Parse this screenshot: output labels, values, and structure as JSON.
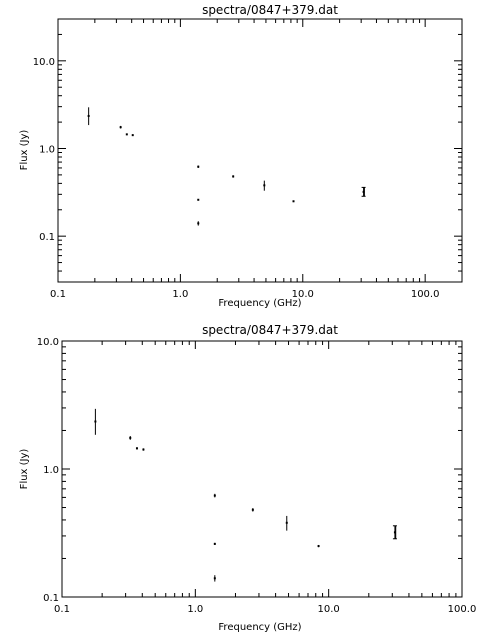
{
  "chart_data": [
    {
      "type": "scatter",
      "title": "spectra/0847+379.dat",
      "xlabel": "Frequency (GHz)",
      "ylabel": "Flux (Jy)",
      "xscale": "log",
      "yscale": "log",
      "xlim": [
        0.1,
        200
      ],
      "ylim": [
        0.03,
        30
      ],
      "xticks": [
        0.1,
        1.0,
        10.0,
        100.0
      ],
      "xtick_labels": [
        "0.1",
        "1.0",
        "10.0",
        "100.0"
      ],
      "yticks": [
        0.1,
        1.0,
        10.0
      ],
      "ytick_labels": [
        "0.1",
        "1.0",
        "10.0"
      ],
      "grid": false,
      "points": [
        {
          "x": 0.178,
          "y": 2.35,
          "ylo": 1.85,
          "yhi": 2.95
        },
        {
          "x": 0.325,
          "y": 1.75,
          "ylo": 1.69,
          "yhi": 1.81
        },
        {
          "x": 0.365,
          "y": 1.45,
          "ylo": 1.42,
          "yhi": 1.48
        },
        {
          "x": 0.408,
          "y": 1.42,
          "ylo": 1.39,
          "yhi": 1.45
        },
        {
          "x": 1.4,
          "y": 0.62,
          "ylo": 0.6,
          "yhi": 0.64
        },
        {
          "x": 1.4,
          "y": 0.26,
          "ylo": 0.255,
          "yhi": 0.265
        },
        {
          "x": 1.4,
          "y": 0.14,
          "ylo": 0.132,
          "yhi": 0.148
        },
        {
          "x": 2.7,
          "y": 0.48,
          "ylo": 0.465,
          "yhi": 0.495
        },
        {
          "x": 4.85,
          "y": 0.38,
          "ylo": 0.33,
          "yhi": 0.43
        },
        {
          "x": 8.4,
          "y": 0.25,
          "ylo": 0.245,
          "yhi": 0.255
        },
        {
          "x": 31.4,
          "y": 0.32,
          "ylo": 0.285,
          "yhi": 0.36
        }
      ]
    },
    {
      "type": "scatter",
      "title": "spectra/0847+379.dat",
      "xlabel": "Frequency (GHz)",
      "ylabel": "Flux (Jy)",
      "xscale": "log",
      "yscale": "log",
      "xlim": [
        0.1,
        100
      ],
      "ylim": [
        0.1,
        10
      ],
      "xticks": [
        0.1,
        1.0,
        10.0,
        100.0
      ],
      "xtick_labels": [
        "0.1",
        "1.0",
        "10.0",
        "100.0"
      ],
      "yticks": [
        0.1,
        1.0,
        10.0
      ],
      "ytick_labels": [
        "0.1",
        "1.0",
        "10.0"
      ],
      "grid": false,
      "points": [
        {
          "x": 0.178,
          "y": 2.35,
          "ylo": 1.85,
          "yhi": 2.95
        },
        {
          "x": 0.325,
          "y": 1.75,
          "ylo": 1.69,
          "yhi": 1.81
        },
        {
          "x": 0.365,
          "y": 1.45,
          "ylo": 1.42,
          "yhi": 1.48
        },
        {
          "x": 0.408,
          "y": 1.42,
          "ylo": 1.39,
          "yhi": 1.45
        },
        {
          "x": 1.4,
          "y": 0.62,
          "ylo": 0.6,
          "yhi": 0.64
        },
        {
          "x": 1.4,
          "y": 0.26,
          "ylo": 0.255,
          "yhi": 0.265
        },
        {
          "x": 1.4,
          "y": 0.14,
          "ylo": 0.132,
          "yhi": 0.148
        },
        {
          "x": 2.7,
          "y": 0.48,
          "ylo": 0.465,
          "yhi": 0.495
        },
        {
          "x": 4.85,
          "y": 0.38,
          "ylo": 0.33,
          "yhi": 0.43
        },
        {
          "x": 8.4,
          "y": 0.25,
          "ylo": 0.245,
          "yhi": 0.255
        },
        {
          "x": 31.4,
          "y": 0.32,
          "ylo": 0.285,
          "yhi": 0.36
        }
      ]
    }
  ]
}
